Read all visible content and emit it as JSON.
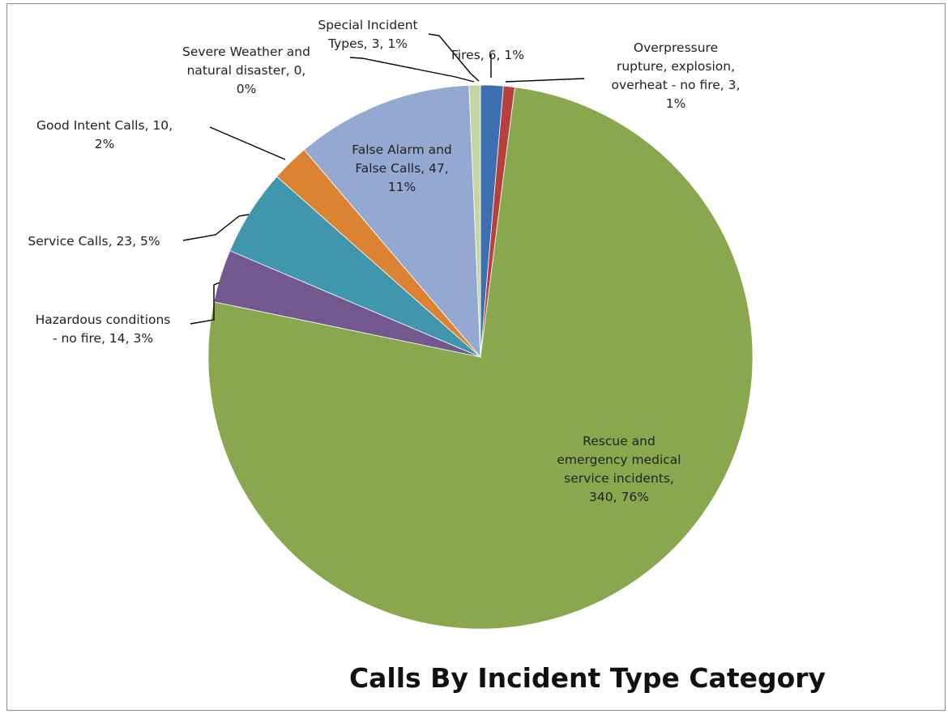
{
  "chart_data": {
    "type": "pie",
    "title": "Calls By Incident Type Category",
    "start_angle_deg": 0,
    "direction": "clockwise",
    "slices": [
      {
        "name": "Fires",
        "value": 6,
        "percent": "1%",
        "color": "#3c6fb0",
        "label_lines": [
          "Fires, 6, 1%"
        ]
      },
      {
        "name": "Overpressure rupture, explosion, overheat - no fire",
        "value": 3,
        "percent": "1%",
        "color": "#b5403d",
        "label_lines": [
          "Overpressure",
          "rupture, explosion,",
          "overheat - no fire, 3,",
          "1%"
        ]
      },
      {
        "name": "Rescue and emergency medical service incidents",
        "value": 340,
        "percent": "76%",
        "color": "#89a84d",
        "label_lines": [
          "Rescue and",
          "emergency medical",
          "service incidents,",
          "340, 76%"
        ]
      },
      {
        "name": "Hazardous conditions - no fire",
        "value": 14,
        "percent": "3%",
        "color": "#72588f",
        "label_lines": [
          "Hazardous conditions",
          "- no fire, 14, 3%"
        ]
      },
      {
        "name": "Service Calls",
        "value": 23,
        "percent": "5%",
        "color": "#4097ad",
        "label_lines": [
          "Service Calls, 23, 5%"
        ]
      },
      {
        "name": "Good Intent Calls",
        "value": 10,
        "percent": "2%",
        "color": "#dc8233",
        "label_lines": [
          "Good Intent Calls, 10,",
          "2%"
        ]
      },
      {
        "name": "False Alarm and False Calls",
        "value": 47,
        "percent": "11%",
        "color": "#94a9d2",
        "label_lines": [
          "False Alarm and",
          "False Calls, 47,",
          "11%"
        ]
      },
      {
        "name": "Severe Weather and natural disaster",
        "value": 0,
        "percent": "0%",
        "color": "#c6d6a3",
        "label_lines": [
          "Severe Weather and",
          "natural disaster, 0,",
          "0%"
        ]
      },
      {
        "name": "Special Incident Types",
        "value": 3,
        "percent": "1%",
        "color": "#c6d6a3",
        "label_lines": [
          "Special Incident",
          "Types, 3, 1%"
        ]
      }
    ]
  }
}
